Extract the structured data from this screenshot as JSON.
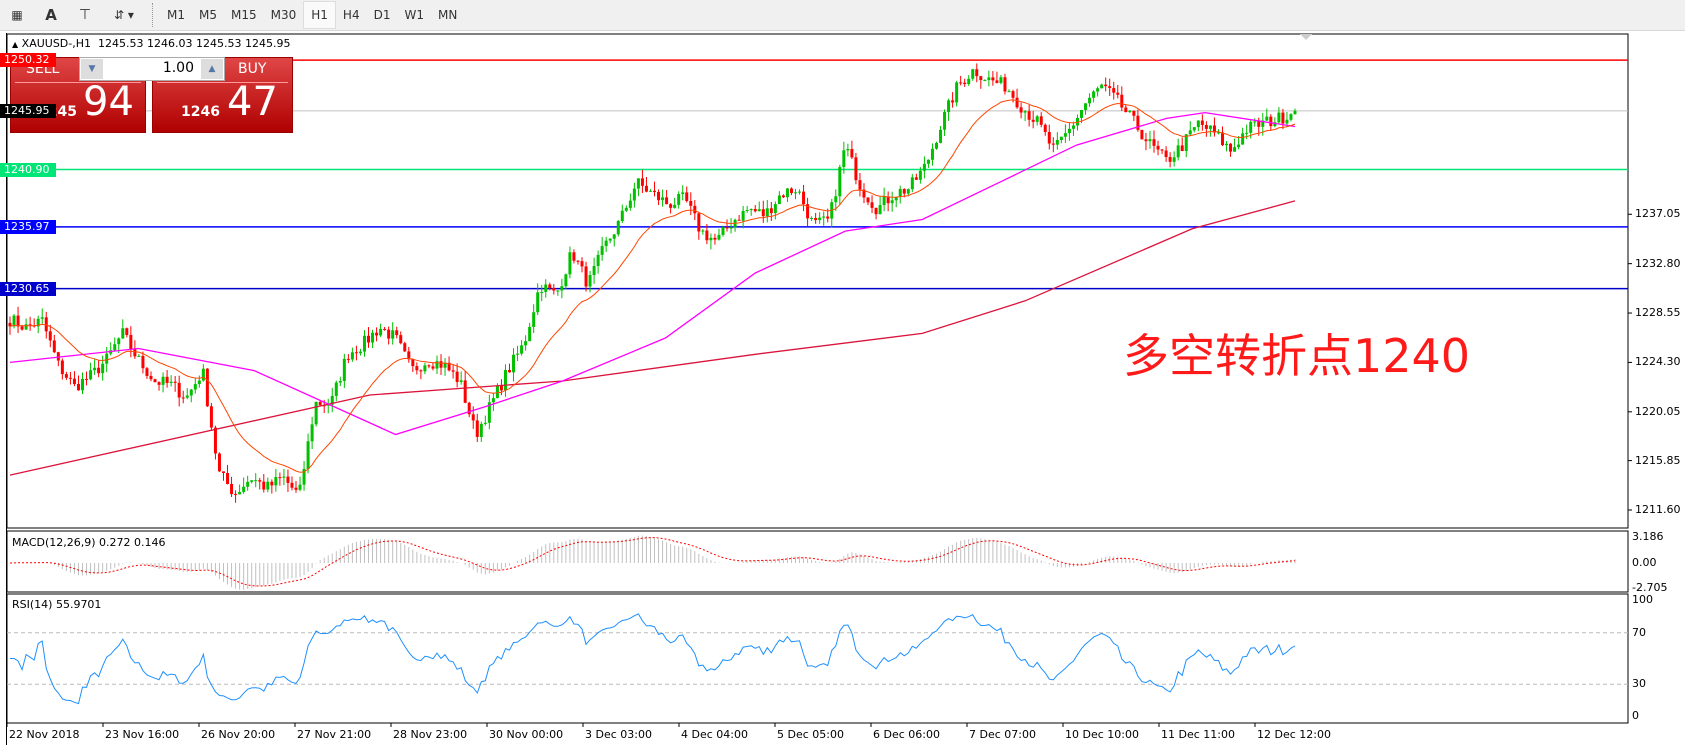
{
  "toolbar": {
    "icons": [
      "periods-grid-icon",
      "text-label-icon",
      "text-box-icon",
      "arrows-icon"
    ],
    "timeframes": [
      "M1",
      "M5",
      "M15",
      "M30",
      "H1",
      "H4",
      "D1",
      "W1",
      "MN"
    ],
    "active": "H1"
  },
  "header": {
    "symbol": "XAUUSD-,H1",
    "open": "1245.53",
    "high": "1246.03",
    "low": "1245.53",
    "close": "1245.95"
  },
  "trade_panel": {
    "sell_label": "SELL",
    "buy_label": "BUY",
    "lot": "1.00",
    "sell_big": "1245",
    "sell_small": "94",
    "buy_big": "1246",
    "buy_small": "47"
  },
  "annotation": "多空转折点1240",
  "price_axis": [
    "1237.05",
    "1232.80",
    "1228.55",
    "1224.30",
    "1220.05",
    "1215.85",
    "1211.60"
  ],
  "levels": [
    {
      "price": "1250.32",
      "color": "#ff0000"
    },
    {
      "price": "1245.95",
      "color": "#000000",
      "line": "#c0c0c0"
    },
    {
      "price": "1240.90",
      "color": "#00e676"
    },
    {
      "price": "1235.97",
      "color": "#0000ff"
    },
    {
      "price": "1230.65",
      "color": "#0000cc"
    }
  ],
  "macd": {
    "label": "MACD(12,26,9) 0.272 0.146",
    "axis": [
      "3.186",
      "0.00",
      "-2.705"
    ]
  },
  "rsi": {
    "label": "RSI(14) 55.9701",
    "axis": [
      "100",
      "70",
      "30",
      "0"
    ]
  },
  "time_axis": [
    "22 Nov 2018",
    "23 Nov 16:00",
    "26 Nov 20:00",
    "27 Nov 21:00",
    "28 Nov 23:00",
    "30 Nov 00:00",
    "3 Dec 03:00",
    "4 Dec 04:00",
    "5 Dec 05:00",
    "6 Dec 06:00",
    "7 Dec 07:00",
    "10 Dec 10:00",
    "11 Dec 11:00",
    "12 Dec 12:00"
  ],
  "chart_data": {
    "type": "candlestick",
    "price_range": [
      1211.6,
      1250.5
    ],
    "close_path": [
      1228,
      1227.3,
      1227.9,
      1224.1,
      1222.2,
      1223.1,
      1224.5,
      1226.8,
      1224.5,
      1222.7,
      1222.4,
      1221.3,
      1223.6,
      1214.8,
      1213,
      1214.4,
      1213.5,
      1214.4,
      1212.8,
      1220.8,
      1220.8,
      1225,
      1225.9,
      1227.3,
      1226.4,
      1223.6,
      1224.5,
      1224.1,
      1222.7,
      1218.1,
      1220.8,
      1223.6,
      1225.9,
      1231,
      1230.1,
      1233.8,
      1231,
      1234.2,
      1236.5,
      1239.8,
      1238.8,
      1237.9,
      1238.4,
      1235.6,
      1234.7,
      1236.5,
      1237.5,
      1237,
      1238.8,
      1239.3,
      1236.1,
      1236.5,
      1243,
      1239.3,
      1237.5,
      1238.8,
      1239.3,
      1241.2,
      1244.9,
      1248.1,
      1249.5,
      1248.6,
      1248.1,
      1246.3,
      1244.9,
      1242.5,
      1244.4,
      1246.7,
      1248.1,
      1246.7,
      1244.9,
      1243,
      1241.6,
      1243,
      1244.9,
      1244,
      1242.5,
      1244.4,
      1244.9,
      1245.3,
      1245.95
    ],
    "ma_long": [
      [
        0,
        1214.6
      ],
      [
        0.28,
        1221.5
      ],
      [
        0.43,
        1222.7
      ],
      [
        0.58,
        1225
      ],
      [
        0.71,
        1226.8
      ],
      [
        0.79,
        1229.6
      ],
      [
        0.92,
        1235.8
      ],
      [
        1,
        1238.2
      ]
    ],
    "ma_mid": [
      [
        0,
        1224.3
      ],
      [
        0.1,
        1225.5
      ],
      [
        0.19,
        1223.6
      ],
      [
        0.3,
        1218.1
      ],
      [
        0.37,
        1220.5
      ],
      [
        0.43,
        1222.7
      ],
      [
        0.51,
        1226.4
      ],
      [
        0.58,
        1232
      ],
      [
        0.65,
        1235.6
      ],
      [
        0.71,
        1236.6
      ],
      [
        0.77,
        1239.8
      ],
      [
        0.83,
        1243
      ],
      [
        0.9,
        1245.3
      ],
      [
        0.93,
        1245.8
      ],
      [
        1,
        1244.6
      ]
    ],
    "colors": {
      "bull": "#00c000",
      "bear": "#ff0000",
      "ma_fast": "#ff4500",
      "ma_mid": "#ff00ff",
      "ma_long": "#dc143c",
      "rsi": "#1e90ff",
      "macd_hist": "#c0c0c0",
      "macd_signal": "#ff0000"
    }
  }
}
